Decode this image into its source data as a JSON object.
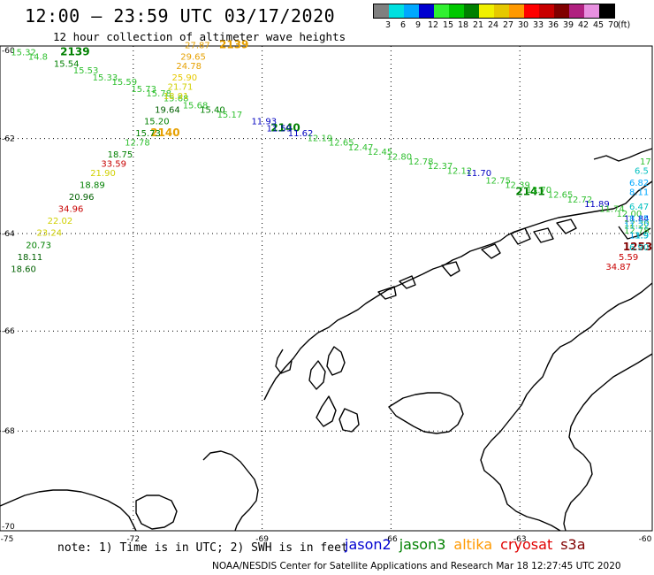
{
  "header": {
    "title": "12:00 — 23:59 UTC 03/17/2020",
    "subtitle": "12 hour collection of altimeter wave heights"
  },
  "color_scale": {
    "colors": [
      "#808080",
      "#00e0e0",
      "#00a8ff",
      "#0000d0",
      "#30f030",
      "#00c800",
      "#008000",
      "#f0f000",
      "#e6c800",
      "#ff9900",
      "#ff0000",
      "#c80000",
      "#800000",
      "#b02080",
      "#e890e0",
      "#000000"
    ],
    "labels": [
      "3",
      "6",
      "9",
      "12",
      "15",
      "18",
      "21",
      "24",
      "27",
      "30",
      "33",
      "36",
      "39",
      "42",
      "45",
      "70",
      "(ft)"
    ]
  },
  "map": {
    "lon_labels": [
      "-75",
      "-72",
      "-69",
      "-66",
      "-63",
      "-60"
    ],
    "lat_labels": [
      "-60",
      "-62",
      "-64",
      "-66",
      "-68",
      "-70"
    ],
    "track_labels": [
      {
        "text": "2139",
        "lon": -73.7,
        "lat": -60.2,
        "color": "#008000"
      },
      {
        "text": "2139",
        "lon": -70.0,
        "lat": -60.05,
        "color": "#e6a000"
      },
      {
        "text": "2140",
        "lon": -68.8,
        "lat": -61.85,
        "color": "#008000"
      },
      {
        "text": "2140",
        "lon": -71.6,
        "lat": -61.95,
        "color": "#e6a000"
      },
      {
        "text": "2141",
        "lon": -63.1,
        "lat": -63.2,
        "color": "#008000"
      },
      {
        "text": "1253",
        "lon": -60.6,
        "lat": -64.35,
        "color": "#800000"
      }
    ],
    "observations": [
      {
        "v": "15.32",
        "lon": -74.85,
        "lat": -60.2,
        "color": "#30c030"
      },
      {
        "v": "14.8",
        "lon": -74.45,
        "lat": -60.3,
        "color": "#30c030"
      },
      {
        "v": "15.54",
        "lon": -73.85,
        "lat": -60.45,
        "color": "#008000"
      },
      {
        "v": "15.53",
        "lon": -73.4,
        "lat": -60.6,
        "color": "#30c030"
      },
      {
        "v": "15.33",
        "lon": -72.95,
        "lat": -60.75,
        "color": "#30c030"
      },
      {
        "v": "15.59",
        "lon": -72.5,
        "lat": -60.85,
        "color": "#30c030"
      },
      {
        "v": "15.73",
        "lon": -72.05,
        "lat": -61.0,
        "color": "#30c030"
      },
      {
        "v": "15.78",
        "lon": -71.7,
        "lat": -61.1,
        "color": "#30c030"
      },
      {
        "v": "15.68",
        "lon": -71.3,
        "lat": -61.2,
        "color": "#30c030"
      },
      {
        "v": "15.68",
        "lon": -70.85,
        "lat": -61.35,
        "color": "#30c030"
      },
      {
        "v": "15.40",
        "lon": -70.45,
        "lat": -61.45,
        "color": "#008000"
      },
      {
        "v": "15.17",
        "lon": -70.05,
        "lat": -61.55,
        "color": "#30c030"
      },
      {
        "v": "27.87",
        "lon": -70.8,
        "lat": -60.05,
        "color": "#e6a000"
      },
      {
        "v": "29.65",
        "lon": -70.9,
        "lat": -60.3,
        "color": "#e6a000"
      },
      {
        "v": "24.78",
        "lon": -71.0,
        "lat": -60.5,
        "color": "#e6a000"
      },
      {
        "v": "25.90",
        "lon": -71.1,
        "lat": -60.75,
        "color": "#e6c800"
      },
      {
        "v": "21.71",
        "lon": -71.2,
        "lat": -60.95,
        "color": "#d0d000"
      },
      {
        "v": "18.91",
        "lon": -71.3,
        "lat": -61.15,
        "color": "#d0d000"
      },
      {
        "v": "19.64",
        "lon": -71.5,
        "lat": -61.45,
        "color": "#006000"
      },
      {
        "v": "15.20",
        "lon": -71.75,
        "lat": -61.7,
        "color": "#008000"
      },
      {
        "v": "15.73",
        "lon": -71.95,
        "lat": -61.95,
        "color": "#008000"
      },
      {
        "v": "11.93",
        "lon": -69.25,
        "lat": -61.7,
        "color": "#0000c0"
      },
      {
        "v": "11.59",
        "lon": -68.9,
        "lat": -61.85,
        "color": "#0000c0"
      },
      {
        "v": "11.62",
        "lon": -68.4,
        "lat": -61.95,
        "color": "#0000c0"
      },
      {
        "v": "12.19",
        "lon": -67.95,
        "lat": -62.05,
        "color": "#30c030"
      },
      {
        "v": "12.65",
        "lon": -67.45,
        "lat": -62.15,
        "color": "#30c030"
      },
      {
        "v": "12.47",
        "lon": -67.0,
        "lat": -62.25,
        "color": "#30c030"
      },
      {
        "v": "12.45",
        "lon": -66.55,
        "lat": -62.35,
        "color": "#30c030"
      },
      {
        "v": "12.80",
        "lon": -66.1,
        "lat": -62.45,
        "color": "#30c030"
      },
      {
        "v": "12.78",
        "lon": -65.6,
        "lat": -62.55,
        "color": "#30c030"
      },
      {
        "v": "12.37",
        "lon": -65.15,
        "lat": -62.65,
        "color": "#30c030"
      },
      {
        "v": "12.12",
        "lon": -64.7,
        "lat": -62.75,
        "color": "#30c030"
      },
      {
        "v": "11.70",
        "lon": -64.25,
        "lat": -62.8,
        "color": "#0000c0"
      },
      {
        "v": "12.75",
        "lon": -63.8,
        "lat": -62.95,
        "color": "#30c030"
      },
      {
        "v": "12.39",
        "lon": -63.35,
        "lat": -63.05,
        "color": "#30c030"
      },
      {
        "v": "13.70",
        "lon": -62.85,
        "lat": -63.15,
        "color": "#30c030"
      },
      {
        "v": "12.65",
        "lon": -62.35,
        "lat": -63.25,
        "color": "#30c030"
      },
      {
        "v": "12.72",
        "lon": -61.9,
        "lat": -63.35,
        "color": "#30c030"
      },
      {
        "v": "11.89",
        "lon": -61.5,
        "lat": -63.45,
        "color": "#0000c0"
      },
      {
        "v": "11.74",
        "lon": -61.15,
        "lat": -63.55,
        "color": "#30c030"
      },
      {
        "v": "12.00",
        "lon": -60.75,
        "lat": -63.65,
        "color": "#30c030"
      },
      {
        "v": "11.84",
        "lon": -60.35,
        "lat": -63.75,
        "color": "#0000c0"
      },
      {
        "v": "12.30",
        "lon": -60.05,
        "lat": -63.85,
        "color": "#30c030"
      },
      {
        "v": "11.22",
        "lon": -59.6,
        "lat": -63.9,
        "color": "#00a8ff"
      },
      {
        "v": "12.78",
        "lon": -59.2,
        "lat": -64.0,
        "color": "#30c030"
      },
      {
        "v": "11.9",
        "lon": -59.25,
        "lat": -64.1,
        "color": "#00a8ff"
      },
      {
        "v": "3.9",
        "lon": -59.7,
        "lat": -64.1,
        "color": "#00c0c0"
      },
      {
        "v": "6.90",
        "lon": -60.1,
        "lat": -64.35,
        "color": "#00c0c0"
      },
      {
        "v": "5.59",
        "lon": -60.7,
        "lat": -64.55,
        "color": "#c80000"
      },
      {
        "v": "34.87",
        "lon": -61.0,
        "lat": -64.75,
        "color": "#c80000"
      },
      {
        "v": "12.78",
        "lon": -72.2,
        "lat": -62.15,
        "color": "#30c030"
      },
      {
        "v": "18.75",
        "lon": -72.6,
        "lat": -62.4,
        "color": "#008000"
      },
      {
        "v": "33.59",
        "lon": -72.75,
        "lat": -62.6,
        "color": "#c80000"
      },
      {
        "v": "21.90",
        "lon": -73.0,
        "lat": -62.8,
        "color": "#d0d000"
      },
      {
        "v": "18.89",
        "lon": -73.25,
        "lat": -63.05,
        "color": "#008000"
      },
      {
        "v": "20.96",
        "lon": -73.5,
        "lat": -63.3,
        "color": "#006000"
      },
      {
        "v": "34.96",
        "lon": -73.75,
        "lat": -63.55,
        "color": "#c80000"
      },
      {
        "v": "22.02",
        "lon": -74.0,
        "lat": -63.8,
        "color": "#d0d000"
      },
      {
        "v": "23.24",
        "lon": -74.25,
        "lat": -64.05,
        "color": "#d0d000"
      },
      {
        "v": "20.73",
        "lon": -74.5,
        "lat": -64.3,
        "color": "#008000"
      },
      {
        "v": "18.11",
        "lon": -74.7,
        "lat": -64.55,
        "color": "#006000"
      },
      {
        "v": "18.60",
        "lon": -74.85,
        "lat": -64.8,
        "color": "#006000"
      },
      {
        "v": "6.5",
        "lon": -59.7,
        "lat": -62.75,
        "color": "#00c0c0"
      },
      {
        "v": "6.82",
        "lon": -59.8,
        "lat": -63.0,
        "color": "#00a8ff"
      },
      {
        "v": "8.11",
        "lon": -59.9,
        "lat": -63.2,
        "color": "#00a8ff"
      },
      {
        "v": "6.47",
        "lon": -60.05,
        "lat": -63.5,
        "color": "#00c0c0"
      },
      {
        "v": "8.15",
        "lon": -60.2,
        "lat": -63.75,
        "color": "#00a8ff"
      },
      {
        "v": "17",
        "lon": -59.75,
        "lat": -62.55,
        "color": "#30c030"
      }
    ]
  },
  "footer": {
    "note": "note: 1) Time is in UTC; 2) SWH is in feet",
    "satellites": [
      {
        "name": "jason2",
        "color": "#0000d0"
      },
      {
        "name": "jason3",
        "color": "#008000"
      },
      {
        "name": "altika",
        "color": "#ff9900"
      },
      {
        "name": "cryosat",
        "color": "#e00000"
      },
      {
        "name": "s3a",
        "color": "#800000"
      }
    ],
    "credit": "NOAA/NESDIS Center for Satellite Applications and Research   Mar 18 12:27:45 UTC 2020"
  }
}
